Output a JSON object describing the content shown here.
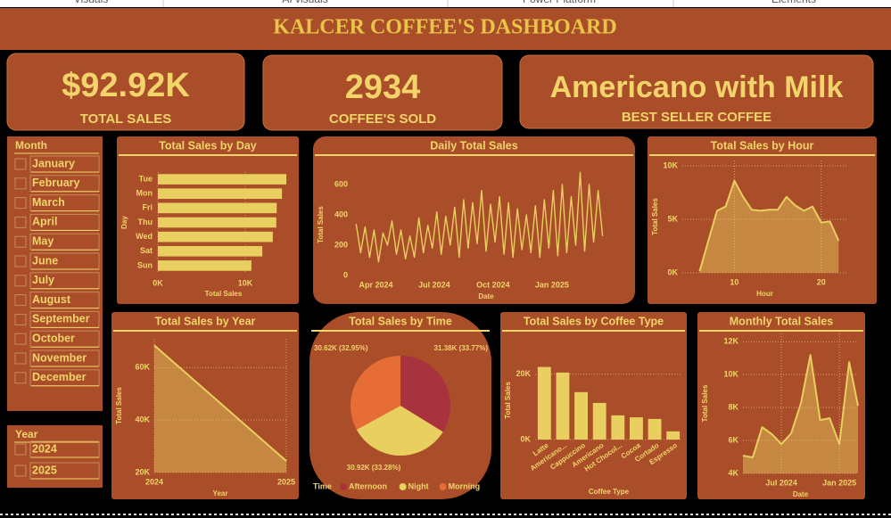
{
  "toolbar": [
    "Visuals",
    "AI visuals",
    "Power Platform",
    "Elements"
  ],
  "header": {
    "title": "KALCER COFFEE'S DASHBOARD"
  },
  "kpis": [
    {
      "value": "$92.92K",
      "label": "TOTAL SALES"
    },
    {
      "value": "2934",
      "label": "COFFEE'S SOLD"
    },
    {
      "value": "Americano with Milk",
      "label": "BEST SELLER COFFEE"
    }
  ],
  "slicers": [
    {
      "title": "Month",
      "items": [
        "January",
        "February",
        "March",
        "April",
        "May",
        "June",
        "July",
        "August",
        "September",
        "October",
        "November",
        "December"
      ]
    },
    {
      "title": "Year",
      "items": [
        "2024",
        "2025"
      ]
    }
  ],
  "chart_data": [
    {
      "type": "hbar",
      "title": "Total Sales by Day",
      "categories": [
        "Tue",
        "Mon",
        "Fri",
        "Thu",
        "Wed",
        "Sat",
        "Sun"
      ],
      "values": [
        14700,
        14200,
        13600,
        13550,
        13150,
        11950,
        10700
      ],
      "color": "#e8cf5f",
      "xlim": [
        0,
        15000
      ],
      "xticks": [
        {
          "value": 0,
          "label": "0K"
        },
        {
          "value": 10000,
          "label": "10K"
        }
      ],
      "x_label": "Total Sales",
      "y_label": "Day",
      "grid": true
    },
    {
      "type": "line",
      "title": "Daily Total Sales",
      "x": [
        "2024-03-01",
        "2024-03-08",
        "2024-03-15",
        "2024-03-22",
        "2024-03-29",
        "2024-04-05",
        "2024-04-12",
        "2024-04-19",
        "2024-04-26",
        "2024-05-03",
        "2024-05-10",
        "2024-05-17",
        "2024-05-24",
        "2024-05-31",
        "2024-06-07",
        "2024-06-14",
        "2024-06-21",
        "2024-06-28",
        "2024-07-05",
        "2024-07-12",
        "2024-07-19",
        "2024-07-26",
        "2024-08-02",
        "2024-08-09",
        "2024-08-16",
        "2024-08-23",
        "2024-08-30",
        "2024-09-06",
        "2024-09-13",
        "2024-09-20",
        "2024-09-27",
        "2024-10-04",
        "2024-10-11",
        "2024-10-18",
        "2024-10-25",
        "2024-11-01",
        "2024-11-08",
        "2024-11-15",
        "2024-11-22",
        "2024-11-29",
        "2024-12-06",
        "2024-12-13",
        "2024-12-20",
        "2024-12-27",
        "2025-01-03",
        "2025-01-10",
        "2025-01-17",
        "2025-01-24",
        "2025-01-31",
        "2025-02-07",
        "2025-02-14",
        "2025-02-21",
        "2025-02-28",
        "2025-03-07",
        "2025-03-14",
        "2025-03-21"
      ],
      "values": [
        340,
        150,
        320,
        120,
        300,
        90,
        280,
        200,
        360,
        140,
        300,
        110,
        260,
        120,
        380,
        150,
        330,
        180,
        420,
        140,
        390,
        200,
        450,
        120,
        500,
        180,
        480,
        210,
        560,
        160,
        470,
        220,
        520,
        140,
        480,
        120,
        440,
        170,
        400,
        150,
        460,
        120,
        500,
        180,
        560,
        130,
        600,
        150,
        520,
        200,
        680,
        160,
        600,
        220,
        560,
        260
      ],
      "color": "#e8cf5f",
      "xlim": [
        "2024-02-24",
        "2025-04-17"
      ],
      "xticks": [
        {
          "value": "2024-04-01",
          "label": "Apr 2024"
        },
        {
          "value": "2024-07-01",
          "label": "Jul 2024"
        },
        {
          "value": "2024-10-01",
          "label": "Oct 2024"
        },
        {
          "value": "2025-01-01",
          "label": "Jan 2025"
        }
      ],
      "ylim": [
        0,
        670
      ],
      "yticks": [
        0,
        200,
        400,
        600
      ],
      "x_label": "Date",
      "y_label": "Total Sales",
      "grid": false
    },
    {
      "type": "area",
      "title": "Total Sales by Hour",
      "x": [
        6,
        7,
        8,
        9,
        10,
        11,
        12,
        13,
        14,
        15,
        16,
        17,
        18,
        19,
        20,
        21,
        22
      ],
      "values": [
        150,
        3000,
        5800,
        6200,
        8600,
        7100,
        5900,
        5800,
        5900,
        5900,
        7100,
        6300,
        5800,
        6200,
        4700,
        4800,
        3000
      ],
      "color": "#e8cf5f",
      "xlim": [
        4,
        23
      ],
      "xticks": [
        10,
        20
      ],
      "ylim": [
        0,
        10500
      ],
      "yticks": [
        {
          "value": 0,
          "label": "0K"
        },
        {
          "value": 5000,
          "label": "5K"
        },
        {
          "value": 10000,
          "label": "10K"
        }
      ],
      "x_label": "Hour",
      "y_label": "Total Sales",
      "grid": true
    },
    {
      "type": "area",
      "title": "Total Sales by Year",
      "x": [
        2024,
        2025
      ],
      "values": [
        68500,
        24400
      ],
      "color": "#e8cf5f",
      "xlim": [
        2024,
        2025
      ],
      "xticks": [
        2024,
        2025
      ],
      "ylim": [
        20000,
        71000
      ],
      "yticks": [
        {
          "value": 20000,
          "label": "20K"
        },
        {
          "value": 40000,
          "label": "40K"
        },
        {
          "value": 60000,
          "label": "60K"
        }
      ],
      "x_label": "Year",
      "y_label": "Total Sales",
      "grid": true
    },
    {
      "type": "pie",
      "title": "Total Sales by Time",
      "legend_title": "Time",
      "categories": [
        "Afternoon",
        "Night",
        "Morning"
      ],
      "values": [
        31380,
        30920,
        30620
      ],
      "value_labels": [
        "31.38K (33.77%)",
        "30.92K (33.28%)",
        "30.62K (32.95%)"
      ],
      "colors": [
        "#a8323e",
        "#e8cf5f",
        "#e66d35"
      ]
    },
    {
      "type": "bar",
      "title": "Total Sales by Coffee Type",
      "categories": [
        "Latte",
        "Americano...",
        "Cappuccino",
        "Americano",
        "Hot Chocol...",
        "Cocoa",
        "Cortado",
        "Espresso"
      ],
      "values": [
        22200,
        20500,
        14500,
        11200,
        7400,
        6800,
        6300,
        2500
      ],
      "color": "#e8cf5f",
      "ylim": [
        0,
        24000
      ],
      "yticks": [
        {
          "value": 0,
          "label": "0K"
        },
        {
          "value": 20000,
          "label": "20K"
        }
      ],
      "x_label": "Coffee Type",
      "y_label": "Total Sales",
      "grid": true
    },
    {
      "type": "area",
      "title": "Monthly Total Sales",
      "x": [
        "2024-03",
        "2024-04",
        "2024-05",
        "2024-06",
        "2024-07",
        "2024-08",
        "2024-09",
        "2024-10",
        "2024-11",
        "2024-12",
        "2025-01",
        "2025-02",
        "2025-03"
      ],
      "values": [
        5080,
        4970,
        6810,
        6380,
        5780,
        6430,
        8270,
        11190,
        7240,
        7350,
        5780,
        10760,
        8110
      ],
      "color": "#e8cf5f",
      "xlim": [
        "2024-03",
        "2025-03"
      ],
      "xticks": [
        {
          "value": "2024-07",
          "label": "Jul 2024"
        },
        {
          "value": "2025-01",
          "label": "Jan 2025"
        }
      ],
      "ylim": [
        4000,
        12500
      ],
      "yticks": [
        {
          "value": 4000,
          "label": "4K"
        },
        {
          "value": 6000,
          "label": "6K"
        },
        {
          "value": 8000,
          "label": "8K"
        },
        {
          "value": 10000,
          "label": "10K"
        },
        {
          "value": 12000,
          "label": "12K"
        }
      ],
      "x_label": "Date",
      "y_label": "Total Sales",
      "grid": true
    }
  ]
}
